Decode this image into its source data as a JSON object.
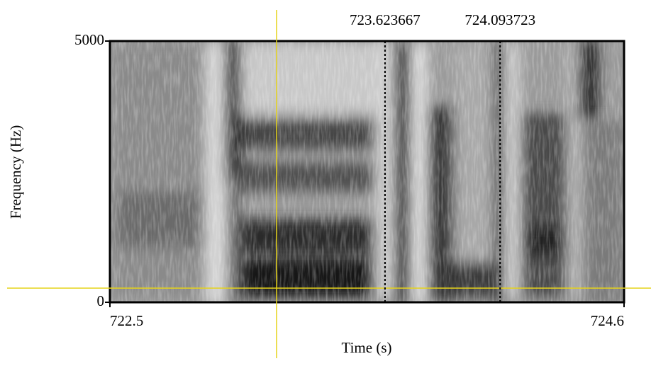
{
  "chart_data": {
    "type": "spectrogram",
    "x_label": "Time (s)",
    "y_label": "Frequency (Hz)",
    "xlim": [
      722.5,
      724.6
    ],
    "xticks": [
      722.5,
      724.6
    ],
    "ylim": [
      0,
      5000
    ],
    "yticks": [
      0,
      5000
    ],
    "markers": [
      723.623667,
      724.093723
    ]
  }
}
